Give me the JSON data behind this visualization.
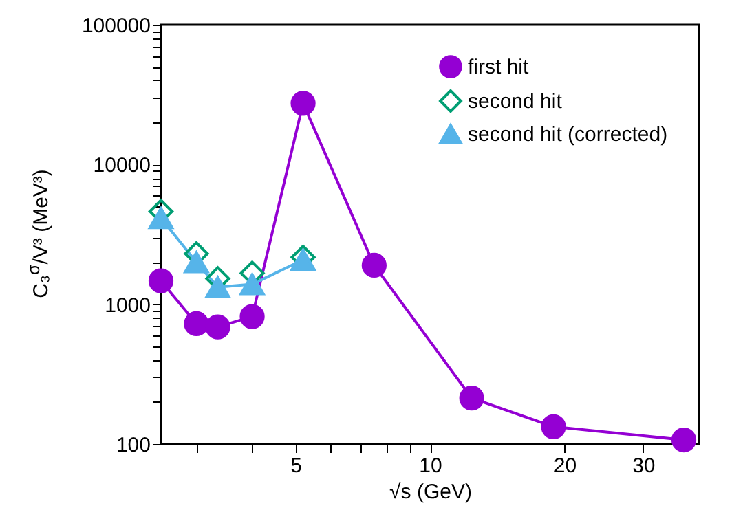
{
  "chart_data": {
    "type": "line",
    "xlabel": "√s (GeV)",
    "ylabel": "C₃$^{σ}$/V³ (MeV³)",
    "log": "xy",
    "legend": "top right",
    "grid": false,
    "xlim": [
      2.5,
      40
    ],
    "xticks": [
      {
        "value": 3,
        "label": null
      },
      {
        "value": 4,
        "label": null
      },
      5,
      {
        "value": 6,
        "label": null
      },
      {
        "value": 7,
        "label": null
      },
      {
        "value": 8,
        "label": null
      },
      {
        "value": 9,
        "label": null
      },
      10,
      20,
      30
    ],
    "ylim": [
      100,
      100000
    ],
    "yticks": [
      100,
      {
        "value": 200,
        "label": null
      },
      {
        "value": 300,
        "label": null
      },
      {
        "value": 400,
        "label": null
      },
      {
        "value": 500,
        "label": null
      },
      {
        "value": 600,
        "label": null
      },
      {
        "value": 700,
        "label": null
      },
      {
        "value": 800,
        "label": null
      },
      {
        "value": 900,
        "label": null
      },
      1000,
      {
        "value": 2000,
        "label": null
      },
      {
        "value": 3000,
        "label": null
      },
      {
        "value": 4000,
        "label": null
      },
      {
        "value": 5000,
        "label": null
      },
      {
        "value": 6000,
        "label": null
      },
      {
        "value": 7000,
        "label": null
      },
      {
        "value": 8000,
        "label": null
      },
      {
        "value": 9000,
        "label": null
      },
      10000,
      {
        "value": 20000,
        "label": null
      },
      {
        "value": 30000,
        "label": null
      },
      {
        "value": 40000,
        "label": null
      },
      {
        "value": 50000,
        "label": null
      },
      {
        "value": 60000,
        "label": null
      },
      {
        "value": 70000,
        "label": null
      },
      {
        "value": 80000,
        "label": null
      },
      {
        "value": 90000,
        "label": null
      },
      100000
    ],
    "series": [
      {
        "name": "first hit",
        "marker": "circle",
        "color": "#9400d3",
        "x": [
          2.5,
          3.0,
          3.35,
          4.0,
          5.2,
          7.5,
          12.4,
          18.9,
          37
        ],
        "values": [
          1470,
          726,
          688,
          816,
          27400,
          1900,
          213,
          133,
          107
        ]
      },
      {
        "name": "second hit",
        "type": "scatter",
        "marker": "diamond",
        "color": "#009e73",
        "x": [
          2.5,
          3.0,
          3.35,
          4.0,
          5.2
        ],
        "values": [
          4620,
          2300,
          1525,
          1670,
          2170
        ]
      },
      {
        "name": "second hit (corrected)",
        "marker": "triangle",
        "color": "#56b4e9",
        "x": [
          2.5,
          3.0,
          3.35,
          4.0,
          5.2
        ],
        "values": [
          4140,
          2000,
          1325,
          1390,
          2080
        ]
      }
    ]
  }
}
